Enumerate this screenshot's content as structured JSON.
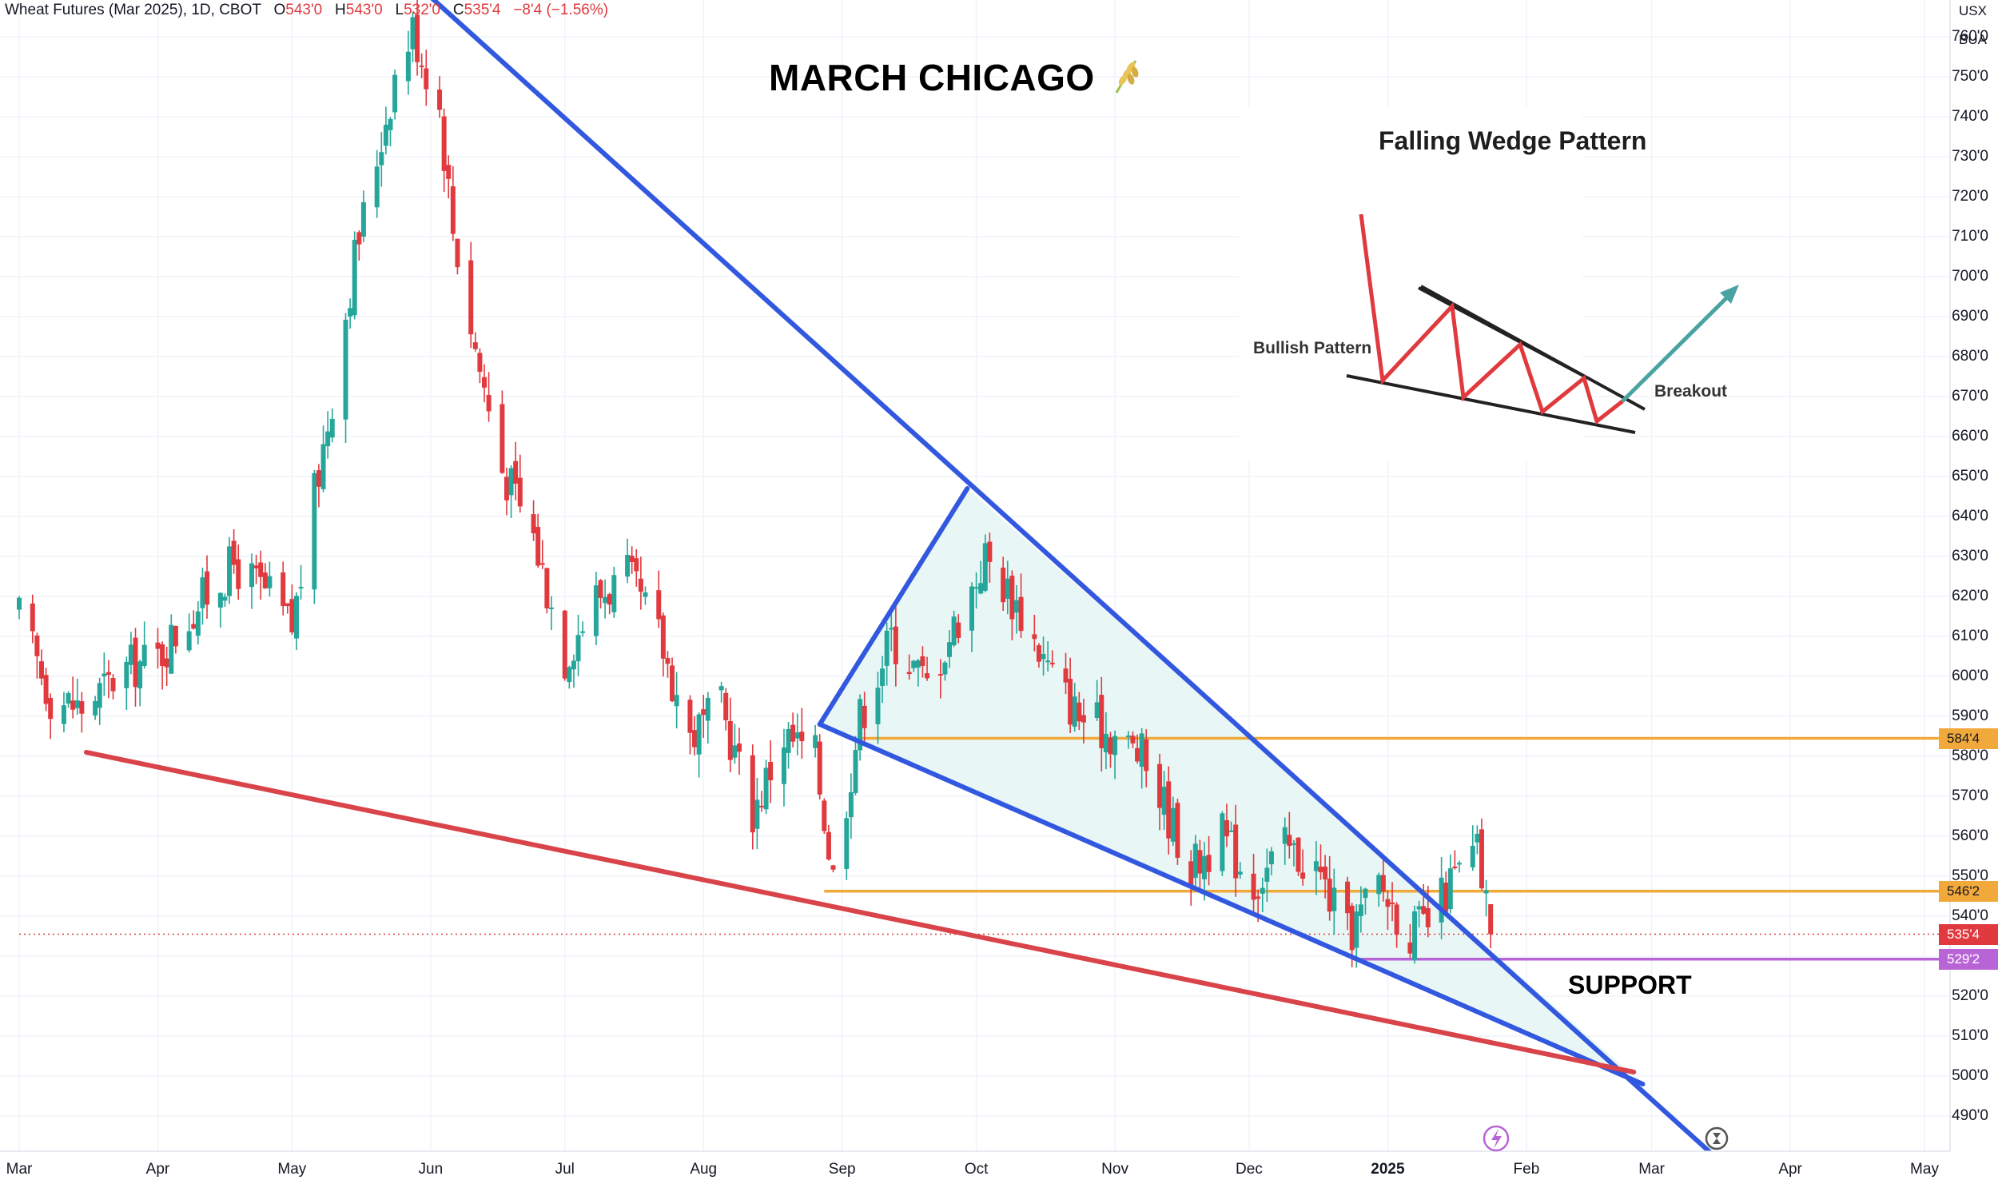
{
  "header": {
    "symbol": "Wheat Futures (Mar 2025), 1D, CBOT",
    "o_label": "O",
    "o": "543'0",
    "h_label": "H",
    "h": "543'0",
    "l_label": "L",
    "l": "532'0",
    "c_label": "C",
    "c": "535'4",
    "change": "−8'4 (−1.56%)"
  },
  "axis_tags": {
    "currency": "USX",
    "unit": "BUA"
  },
  "annotations": {
    "title": "MARCH CHICAGO",
    "title_icon": "wheat-icon",
    "support": "SUPPORT",
    "inset_title": "Falling Wedge Pattern",
    "inset_bullish": "Bullish Pattern",
    "inset_breakout": "Breakout"
  },
  "price_badges": [
    {
      "value": "584'4",
      "color": "#f2a93b",
      "text_color": "#131722"
    },
    {
      "value": "546'2",
      "color": "#f2a93b",
      "text_color": "#131722"
    },
    {
      "value": "535'4",
      "color": "#e0393e",
      "text_color": "#ffffff"
    },
    {
      "value": "529'2",
      "color": "#b964d6",
      "text_color": "#ffffff"
    }
  ],
  "colors": {
    "up": "#26a69a",
    "down": "#e0393e",
    "wedge": "#3358e0",
    "lower_support": "#d9444a",
    "horizontal": "#f2a93b",
    "support_line": "#b964d6",
    "wedge_fill": "#e6f6f4"
  },
  "chart_data": {
    "type": "candlestick",
    "title": "Wheat Futures (Mar 2025), 1D, CBOT",
    "x_axis": {
      "tick_labels": [
        "Mar",
        "Apr",
        "May",
        "Jun",
        "Jul",
        "Aug",
        "Sep",
        "Oct",
        "Nov",
        "Dec",
        "2025",
        "Feb",
        "Mar",
        "Apr",
        "May"
      ],
      "tick_dates": [
        "2024-03-01",
        "2024-04-01",
        "2024-05-01",
        "2024-06-01",
        "2024-07-01",
        "2024-08-01",
        "2024-09-01",
        "2024-10-01",
        "2024-11-01",
        "2024-12-01",
        "2025-01-01",
        "2025-02-01",
        "2025-03-01",
        "2025-04-01",
        "2025-05-01"
      ]
    },
    "y_axis": {
      "range": [
        482,
        780
      ],
      "tick_labels": [
        "490'0",
        "500'0",
        "510'0",
        "520'0",
        "530'0",
        "540'0",
        "550'0",
        "560'0",
        "570'0",
        "580'0",
        "590'0",
        "600'0",
        "610'0",
        "620'0",
        "630'0",
        "640'0",
        "650'0",
        "660'0",
        "670'0",
        "680'0",
        "690'0",
        "700'0",
        "710'0",
        "720'0",
        "730'0",
        "740'0",
        "750'0",
        "760'0"
      ],
      "tick_values": [
        490,
        500,
        510,
        520,
        530,
        540,
        550,
        560,
        570,
        580,
        590,
        600,
        610,
        620,
        630,
        640,
        650,
        660,
        670,
        680,
        690,
        700,
        710,
        720,
        730,
        740,
        750,
        760
      ]
    },
    "close_path": [
      [
        "2024-03-01",
        615
      ],
      [
        "2024-03-08",
        595
      ],
      [
        "2024-03-15",
        592
      ],
      [
        "2024-03-25",
        602
      ],
      [
        "2024-04-01",
        605
      ],
      [
        "2024-04-10",
        618
      ],
      [
        "2024-04-18",
        628
      ],
      [
        "2024-04-26",
        620
      ],
      [
        "2024-05-01",
        612
      ],
      [
        "2024-05-06",
        645
      ],
      [
        "2024-05-10",
        670
      ],
      [
        "2024-05-15",
        705
      ],
      [
        "2024-05-21",
        735
      ],
      [
        "2024-05-24",
        750
      ],
      [
        "2024-05-28",
        762
      ],
      [
        "2024-06-03",
        742
      ],
      [
        "2024-06-06",
        712
      ],
      [
        "2024-06-11",
        682
      ],
      [
        "2024-06-17",
        652
      ],
      [
        "2024-06-24",
        635
      ],
      [
        "2024-07-01",
        605
      ],
      [
        "2024-07-08",
        620
      ],
      [
        "2024-07-15",
        625
      ],
      [
        "2024-07-22",
        610
      ],
      [
        "2024-07-29",
        585
      ],
      [
        "2024-08-05",
        592
      ],
      [
        "2024-08-12",
        566
      ],
      [
        "2024-08-19",
        585
      ],
      [
        "2024-08-26",
        580
      ],
      [
        "2024-08-30",
        550
      ],
      [
        "2024-09-05",
        590
      ],
      [
        "2024-09-12",
        610
      ],
      [
        "2024-09-20",
        598
      ],
      [
        "2024-09-30",
        622
      ],
      [
        "2024-10-03",
        630
      ],
      [
        "2024-10-10",
        618
      ],
      [
        "2024-10-18",
        600
      ],
      [
        "2024-10-24",
        590
      ],
      [
        "2024-10-31",
        586
      ],
      [
        "2024-11-07",
        580
      ],
      [
        "2024-11-12",
        568
      ],
      [
        "2024-11-18",
        552
      ],
      [
        "2024-11-25",
        560
      ],
      [
        "2024-12-02",
        548
      ],
      [
        "2024-12-09",
        557
      ],
      [
        "2024-12-16",
        552
      ],
      [
        "2024-12-23",
        535
      ],
      [
        "2024-12-30",
        548
      ],
      [
        "2025-01-06",
        536
      ],
      [
        "2025-01-10",
        538
      ],
      [
        "2025-01-15",
        548
      ],
      [
        "2025-01-21",
        556
      ],
      [
        "2025-01-24",
        535.5
      ]
    ],
    "lines": [
      {
        "name": "wedge-upper",
        "from": [
          "2024-05-27",
          775
        ],
        "to": [
          "2025-03-14",
          481
        ]
      },
      {
        "name": "wedge-lower",
        "from": [
          "2024-08-27",
          588
        ],
        "to": [
          "2025-02-27",
          498
        ]
      },
      {
        "name": "inner-upper",
        "from": [
          "2024-08-27",
          588
        ],
        "to": [
          "2024-09-29",
          647
        ]
      },
      {
        "name": "lower-support",
        "from": [
          "2024-03-16",
          581
        ],
        "to": [
          "2025-02-25",
          501
        ]
      }
    ],
    "horizontal_levels": [
      {
        "value": 584.5,
        "label": "584'4",
        "from": "2024-09-05"
      },
      {
        "value": 546.25,
        "label": "546'2",
        "from": "2024-08-28"
      },
      {
        "value": 535.5,
        "label": "535'4",
        "from": "2024-03-01",
        "style": "dotted"
      },
      {
        "value": 529.25,
        "label": "529'2",
        "from": "2024-12-26"
      }
    ],
    "last_close": 535.5
  }
}
